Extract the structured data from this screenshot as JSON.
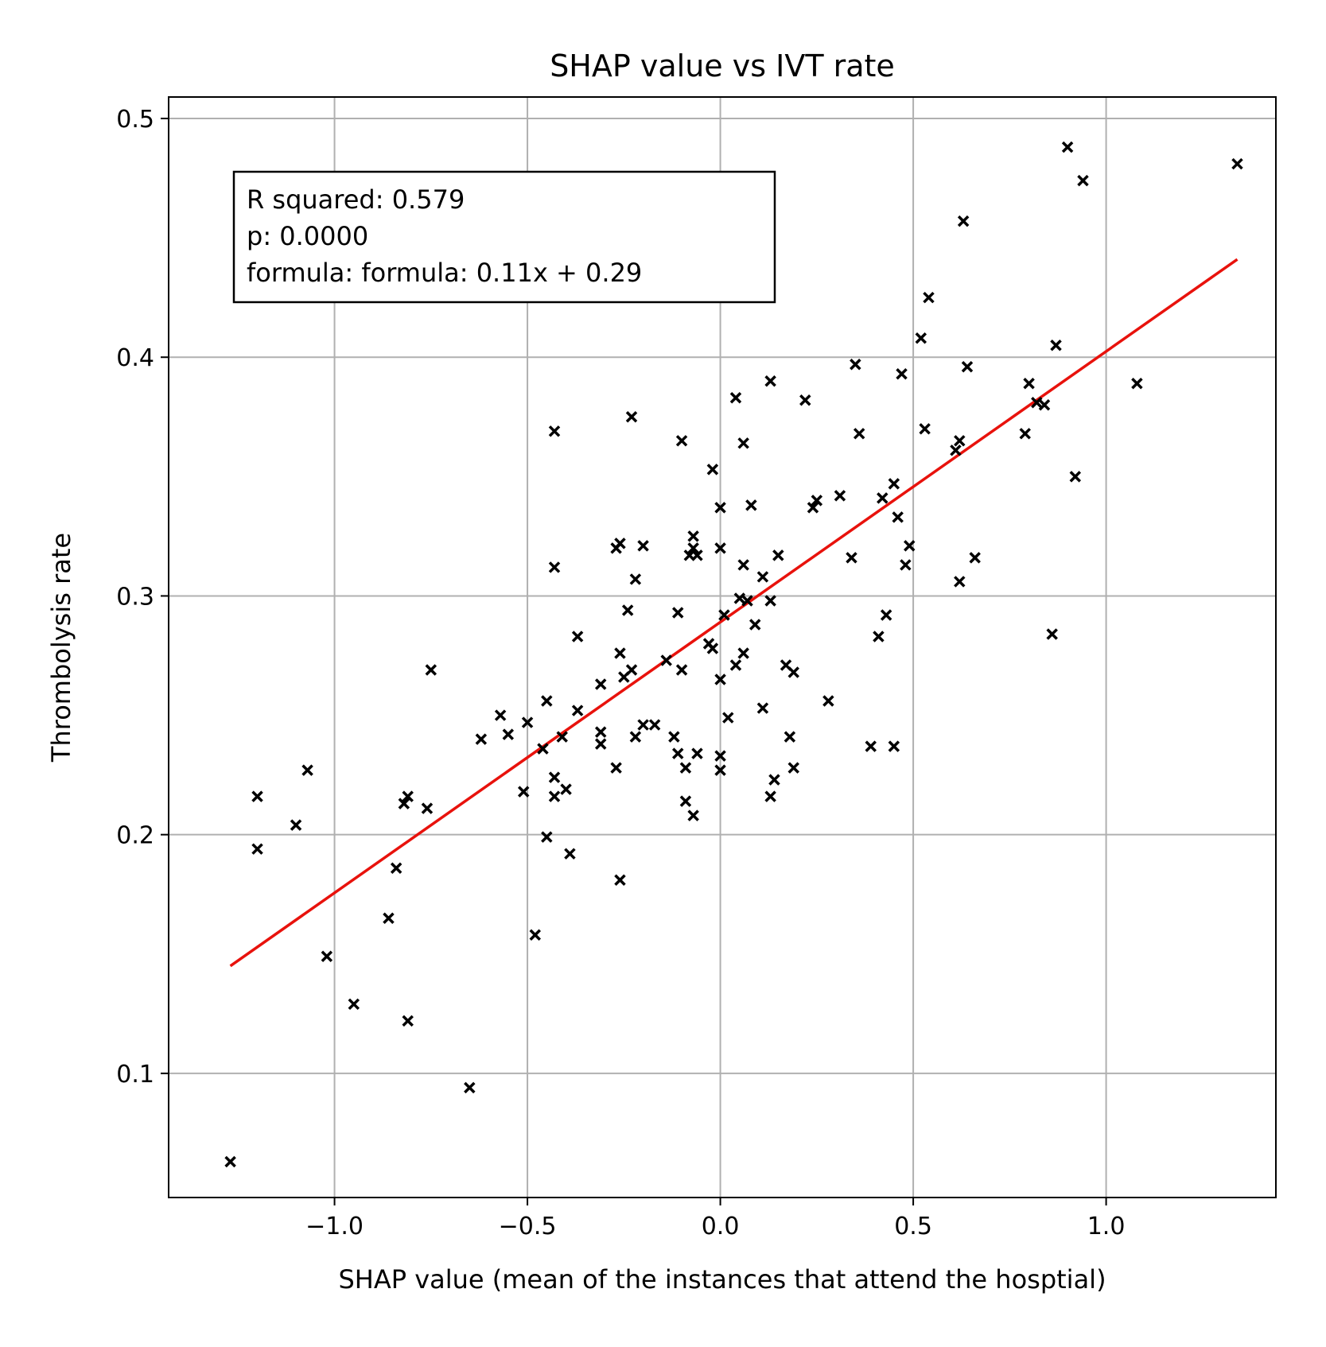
{
  "chart_data": {
    "type": "scatter",
    "title": "SHAP value vs IVT rate",
    "xlabel": "SHAP value (mean of the instances that attend the hosptial)",
    "ylabel": "Thrombolysis rate",
    "xlim": [
      -1.43,
      1.44
    ],
    "ylim": [
      0.048,
      0.509
    ],
    "xticks": [
      -1.0,
      -0.5,
      0.0,
      0.5,
      1.0
    ],
    "xtick_labels": [
      "−1.0",
      "−0.5",
      "0.0",
      "0.5",
      "1.0"
    ],
    "yticks": [
      0.1,
      0.2,
      0.3,
      0.4,
      0.5
    ],
    "ytick_labels": [
      "0.1",
      "0.2",
      "0.3",
      "0.4",
      "0.5"
    ],
    "grid": true,
    "marker": "x",
    "marker_color": "#000000",
    "fit_line": {
      "color": "#e8120c",
      "x": [
        -1.27,
        1.34
      ],
      "y": [
        0.145,
        0.441
      ]
    },
    "annotation": {
      "lines": [
        "R squared: 0.579",
        "p: 0.0000",
        "formula: formula: 0.11x + 0.29"
      ],
      "placement": "top-left"
    },
    "points": [
      [
        -1.27,
        0.063
      ],
      [
        -1.2,
        0.216
      ],
      [
        -1.2,
        0.194
      ],
      [
        -1.1,
        0.204
      ],
      [
        -1.07,
        0.227
      ],
      [
        -1.02,
        0.149
      ],
      [
        -0.95,
        0.129
      ],
      [
        -0.86,
        0.165
      ],
      [
        -0.84,
        0.186
      ],
      [
        -0.82,
        0.213
      ],
      [
        -0.81,
        0.216
      ],
      [
        -0.81,
        0.122
      ],
      [
        -0.76,
        0.211
      ],
      [
        -0.75,
        0.269
      ],
      [
        -0.65,
        0.094
      ],
      [
        -0.62,
        0.24
      ],
      [
        -0.57,
        0.25
      ],
      [
        -0.55,
        0.242
      ],
      [
        -0.51,
        0.218
      ],
      [
        -0.5,
        0.247
      ],
      [
        -0.48,
        0.158
      ],
      [
        -0.46,
        0.236
      ],
      [
        -0.45,
        0.199
      ],
      [
        -0.45,
        0.256
      ],
      [
        -0.43,
        0.369
      ],
      [
        -0.43,
        0.312
      ],
      [
        -0.43,
        0.224
      ],
      [
        -0.43,
        0.216
      ],
      [
        -0.41,
        0.241
      ],
      [
        -0.4,
        0.219
      ],
      [
        -0.39,
        0.192
      ],
      [
        -0.37,
        0.252
      ],
      [
        -0.37,
        0.283
      ],
      [
        -0.31,
        0.263
      ],
      [
        -0.31,
        0.243
      ],
      [
        -0.31,
        0.238
      ],
      [
        -0.27,
        0.32
      ],
      [
        -0.27,
        0.228
      ],
      [
        -0.26,
        0.322
      ],
      [
        -0.26,
        0.276
      ],
      [
        -0.26,
        0.181
      ],
      [
        -0.25,
        0.266
      ],
      [
        -0.24,
        0.294
      ],
      [
        -0.23,
        0.269
      ],
      [
        -0.23,
        0.375
      ],
      [
        -0.22,
        0.307
      ],
      [
        -0.22,
        0.241
      ],
      [
        -0.2,
        0.321
      ],
      [
        -0.2,
        0.246
      ],
      [
        -0.17,
        0.246
      ],
      [
        -0.14,
        0.273
      ],
      [
        -0.12,
        0.241
      ],
      [
        -0.11,
        0.234
      ],
      [
        -0.11,
        0.293
      ],
      [
        -0.1,
        0.365
      ],
      [
        -0.1,
        0.269
      ],
      [
        -0.09,
        0.228
      ],
      [
        -0.09,
        0.214
      ],
      [
        -0.08,
        0.317
      ],
      [
        -0.07,
        0.325
      ],
      [
        -0.07,
        0.32
      ],
      [
        -0.07,
        0.208
      ],
      [
        -0.06,
        0.234
      ],
      [
        -0.06,
        0.317
      ],
      [
        -0.03,
        0.28
      ],
      [
        -0.02,
        0.353
      ],
      [
        -0.02,
        0.278
      ],
      [
        0.0,
        0.337
      ],
      [
        0.0,
        0.32
      ],
      [
        0.0,
        0.265
      ],
      [
        0.0,
        0.233
      ],
      [
        0.0,
        0.227
      ],
      [
        0.01,
        0.292
      ],
      [
        0.02,
        0.249
      ],
      [
        0.04,
        0.383
      ],
      [
        0.04,
        0.271
      ],
      [
        0.05,
        0.299
      ],
      [
        0.06,
        0.364
      ],
      [
        0.06,
        0.313
      ],
      [
        0.06,
        0.276
      ],
      [
        0.07,
        0.298
      ],
      [
        0.08,
        0.338
      ],
      [
        0.09,
        0.288
      ],
      [
        0.11,
        0.308
      ],
      [
        0.11,
        0.253
      ],
      [
        0.13,
        0.39
      ],
      [
        0.13,
        0.298
      ],
      [
        0.13,
        0.216
      ],
      [
        0.14,
        0.223
      ],
      [
        0.15,
        0.317
      ],
      [
        0.17,
        0.271
      ],
      [
        0.18,
        0.241
      ],
      [
        0.19,
        0.268
      ],
      [
        0.19,
        0.228
      ],
      [
        0.22,
        0.382
      ],
      [
        0.24,
        0.337
      ],
      [
        0.25,
        0.34
      ],
      [
        0.28,
        0.256
      ],
      [
        0.31,
        0.342
      ],
      [
        0.34,
        0.316
      ],
      [
        0.35,
        0.397
      ],
      [
        0.36,
        0.368
      ],
      [
        0.39,
        0.237
      ],
      [
        0.41,
        0.283
      ],
      [
        0.42,
        0.341
      ],
      [
        0.43,
        0.292
      ],
      [
        0.45,
        0.347
      ],
      [
        0.45,
        0.237
      ],
      [
        0.46,
        0.333
      ],
      [
        0.47,
        0.393
      ],
      [
        0.48,
        0.313
      ],
      [
        0.49,
        0.321
      ],
      [
        0.52,
        0.408
      ],
      [
        0.53,
        0.37
      ],
      [
        0.54,
        0.425
      ],
      [
        0.61,
        0.361
      ],
      [
        0.62,
        0.365
      ],
      [
        0.62,
        0.306
      ],
      [
        0.63,
        0.457
      ],
      [
        0.64,
        0.396
      ],
      [
        0.66,
        0.316
      ],
      [
        0.79,
        0.368
      ],
      [
        0.8,
        0.389
      ],
      [
        0.82,
        0.381
      ],
      [
        0.84,
        0.38
      ],
      [
        0.86,
        0.284
      ],
      [
        0.87,
        0.405
      ],
      [
        0.9,
        0.488
      ],
      [
        0.92,
        0.35
      ],
      [
        0.94,
        0.474
      ],
      [
        1.08,
        0.389
      ],
      [
        1.34,
        0.481
      ]
    ]
  }
}
